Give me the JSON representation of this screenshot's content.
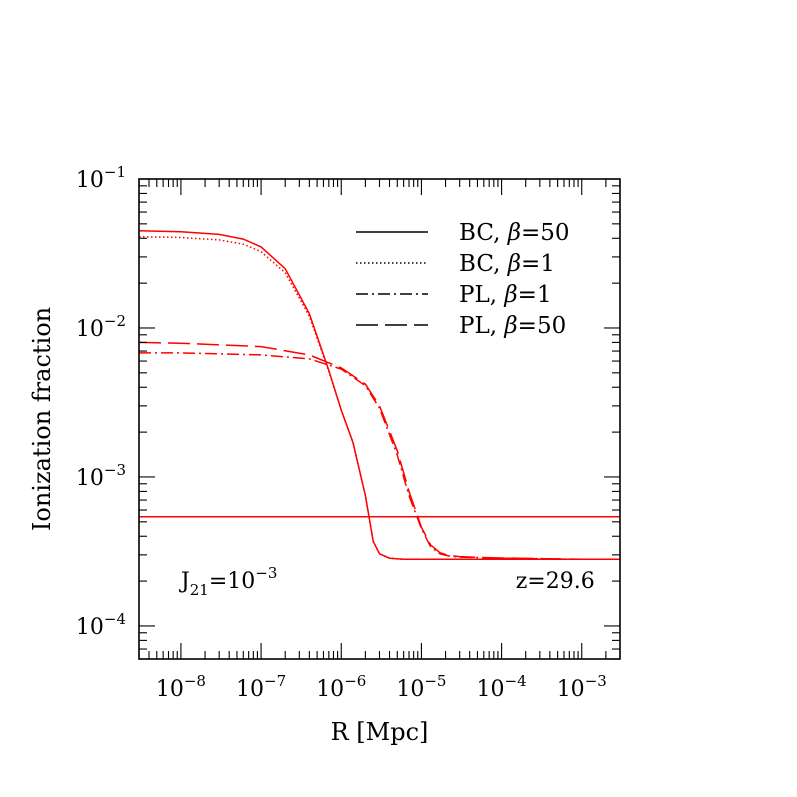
{
  "chart_data": {
    "type": "line",
    "xlabel": "R [Mpc]",
    "ylabel": "Ionization fraction",
    "x_scale": "log",
    "y_scale": "log",
    "xlim": [
      3e-09,
      0.003
    ],
    "ylim": [
      6e-05,
      0.1
    ],
    "x_ticks": [
      {
        "value": 1e-08,
        "base": "10",
        "exp": "−8"
      },
      {
        "value": 1e-07,
        "base": "10",
        "exp": "−7"
      },
      {
        "value": 1e-06,
        "base": "10",
        "exp": "−6"
      },
      {
        "value": 1e-05,
        "base": "10",
        "exp": "−5"
      },
      {
        "value": 0.0001,
        "base": "10",
        "exp": "−4"
      },
      {
        "value": 0.001,
        "base": "10",
        "exp": "−3"
      }
    ],
    "y_ticks": [
      {
        "value": 0.1,
        "base": "10",
        "exp": "−1"
      },
      {
        "value": 0.01,
        "base": "10",
        "exp": "−2"
      },
      {
        "value": 0.001,
        "base": "10",
        "exp": "−3"
      },
      {
        "value": 0.0001,
        "base": "10",
        "exp": "−4"
      }
    ],
    "legend_position": "top-right",
    "color": "#ff0000",
    "series": [
      {
        "name": "BC, β=50",
        "legend_prefix": "BC,",
        "legend_beta": "β",
        "legend_suffix": "=50",
        "dash": "solid",
        "x": [
          3e-09,
          1e-08,
          3e-08,
          6e-08,
          1e-07,
          2e-07,
          4e-07,
          7e-07,
          1e-06,
          1.4e-06,
          2e-06,
          2.5e-06,
          3e-06,
          4e-06,
          6e-06,
          1e-05,
          0.0001,
          0.001,
          0.003
        ],
        "y": [
          0.045,
          0.0443,
          0.0425,
          0.0395,
          0.035,
          0.025,
          0.0125,
          0.0052,
          0.0028,
          0.0017,
          0.00075,
          0.00037,
          0.000305,
          0.000285,
          0.00028,
          0.00028,
          0.00028,
          0.00028,
          0.00028
        ]
      },
      {
        "name": "BC, β=1",
        "legend_prefix": "BC,",
        "legend_beta": "β",
        "legend_suffix": "=1",
        "dash": "dotted",
        "x": [
          3e-09,
          1e-08,
          3e-08,
          6e-08,
          1e-07,
          2e-07,
          4e-07,
          7e-07,
          1e-06,
          1.4e-06,
          2e-06,
          2.5e-06,
          3e-06,
          4e-06,
          6e-06,
          1e-05,
          0.0001,
          0.001,
          0.003
        ],
        "y": [
          0.041,
          0.0405,
          0.039,
          0.0365,
          0.0325,
          0.0235,
          0.012,
          0.0051,
          0.0028,
          0.0017,
          0.00075,
          0.00037,
          0.000305,
          0.000285,
          0.00028,
          0.00028,
          0.00028,
          0.00028,
          0.00028
        ]
      },
      {
        "name": "PL, β=1",
        "legend_prefix": "PL,",
        "legend_beta": "β",
        "legend_suffix": "=1",
        "dash": "dashdot",
        "x": [
          3e-09,
          1e-08,
          1e-07,
          4e-07,
          1e-06,
          2e-06,
          3e-06,
          5e-06,
          7e-06,
          1e-05,
          1.3e-05,
          1.7e-05,
          2.2e-05,
          3e-05,
          5e-05,
          0.0001,
          0.001,
          0.003
        ],
        "y": [
          0.0068,
          0.0068,
          0.0066,
          0.0062,
          0.0053,
          0.0041,
          0.0029,
          0.0014,
          0.00075,
          0.00045,
          0.00034,
          0.000305,
          0.000295,
          0.00029,
          0.000288,
          0.000285,
          0.00028,
          0.00028
        ]
      },
      {
        "name": "PL, β=50",
        "legend_prefix": "PL,",
        "legend_beta": "β",
        "legend_suffix": "=50",
        "dash": "dashed",
        "x": [
          3e-09,
          1e-08,
          1e-07,
          4e-07,
          1e-06,
          2e-06,
          3e-06,
          5e-06,
          7e-06,
          1e-05,
          1.3e-05,
          1.7e-05,
          2.2e-05,
          3e-05,
          5e-05,
          0.0001,
          0.001,
          0.003
        ],
        "y": [
          0.008,
          0.0079,
          0.0075,
          0.0066,
          0.0054,
          0.0042,
          0.003,
          0.0015,
          0.0008,
          0.00046,
          0.00035,
          0.00031,
          0.000297,
          0.000292,
          0.000289,
          0.000286,
          0.00028,
          0.00028
        ]
      },
      {
        "name": "",
        "dash": "solid",
        "in_legend": false,
        "x": [
          3e-09,
          0.003
        ],
        "y": [
          0.00054,
          0.00054
        ]
      }
    ],
    "annotations": [
      {
        "id": "j21",
        "base": "J",
        "sub": "21",
        "mid": "=10",
        "exp": "−3",
        "x": 1e-08,
        "y": 0.00018
      },
      {
        "id": "z",
        "text": "z=29.6",
        "x": 0.00015,
        "y": 0.00018
      }
    ]
  }
}
